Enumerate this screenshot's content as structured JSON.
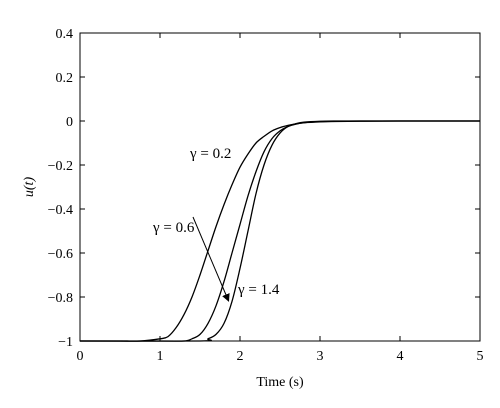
{
  "chart_data": {
    "type": "line",
    "xlabel": "Time (s)",
    "ylabel": "u(t)",
    "xlim": [
      0,
      5
    ],
    "ylim": [
      -1,
      0.4
    ],
    "xticks": [
      0,
      1,
      2,
      3,
      4,
      5
    ],
    "yticks": [
      -1,
      -0.8,
      -0.6,
      -0.4,
      -0.2,
      0,
      0.2,
      0.4
    ],
    "xtick_labels": [
      "0",
      "1",
      "2",
      "3",
      "4",
      "5"
    ],
    "ytick_labels": [
      "−1",
      "−0.8",
      "−0.6",
      "−0.4",
      "−0.2",
      "0",
      "0.2",
      "0.4"
    ],
    "grid": false,
    "line_color": "#000000",
    "series": [
      {
        "label": "γ = 0.2",
        "x": [
          0.0,
          0.5,
          0.75,
          1.0,
          1.1,
          1.2,
          1.3,
          1.4,
          1.5,
          1.6,
          1.7,
          1.8,
          1.9,
          2.0,
          2.1,
          2.2,
          2.3,
          2.4,
          2.5,
          2.6,
          2.7,
          2.8,
          3.0,
          3.2,
          3.5,
          4.0,
          5.0
        ],
        "y": [
          -1.0,
          -1.0,
          -1.0,
          -0.99,
          -0.98,
          -0.94,
          -0.88,
          -0.8,
          -0.7,
          -0.59,
          -0.48,
          -0.38,
          -0.29,
          -0.21,
          -0.15,
          -0.1,
          -0.07,
          -0.045,
          -0.03,
          -0.02,
          -0.013,
          -0.008,
          -0.004,
          -0.002,
          -0.001,
          0.0,
          0.0
        ]
      },
      {
        "label": "γ = 0.6",
        "x": [
          0.0,
          1.0,
          1.3,
          1.4,
          1.5,
          1.6,
          1.7,
          1.8,
          1.9,
          2.0,
          2.1,
          2.2,
          2.3,
          2.4,
          2.5,
          2.6,
          2.7,
          2.8,
          3.0,
          3.2,
          3.5,
          4.0,
          5.0
        ],
        "y": [
          -1.0,
          -1.0,
          -1.0,
          -0.99,
          -0.97,
          -0.92,
          -0.84,
          -0.73,
          -0.6,
          -0.47,
          -0.34,
          -0.23,
          -0.14,
          -0.08,
          -0.045,
          -0.025,
          -0.014,
          -0.008,
          -0.003,
          -0.001,
          0.0,
          0.0,
          0.0
        ]
      },
      {
        "label": "γ = 1.4",
        "x": [
          0.0,
          1.5,
          1.6,
          1.7,
          1.8,
          1.9,
          2.0,
          2.1,
          2.2,
          2.3,
          2.4,
          2.5,
          2.6,
          2.7,
          2.8,
          3.0,
          3.2,
          3.5,
          4.0,
          5.0
        ],
        "y": [
          -1.0,
          -1.0,
          -0.99,
          -0.97,
          -0.92,
          -0.82,
          -0.67,
          -0.5,
          -0.33,
          -0.2,
          -0.11,
          -0.055,
          -0.025,
          -0.012,
          -0.005,
          -0.001,
          0.0,
          0.0,
          0.0,
          0.0
        ]
      }
    ],
    "annotations": [
      {
        "text": "γ = 0.2",
        "target_series": 0
      },
      {
        "text": "γ = 0.6",
        "target_series": 1,
        "arrow_to": [
          1.87,
          -0.8
        ]
      },
      {
        "text": "γ = 1.4",
        "target_series": 2
      }
    ]
  }
}
